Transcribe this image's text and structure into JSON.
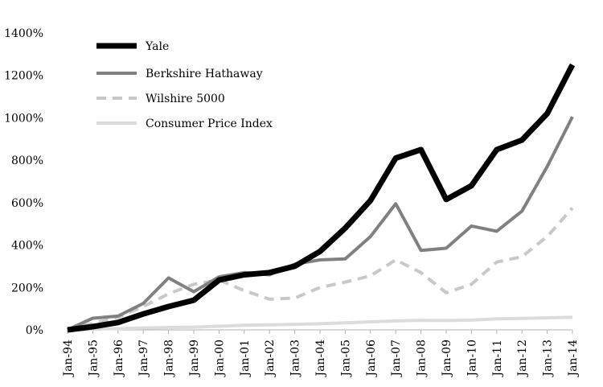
{
  "chart_data": {
    "type": "line",
    "title": "",
    "xlabel": "",
    "ylabel": "",
    "categories": [
      "Jan-94",
      "Jan-95",
      "Jan-96",
      "Jan-97",
      "Jan-98",
      "Jan-99",
      "Jan-00",
      "Jan-01",
      "Jan-02",
      "Jan-03",
      "Jan-04",
      "Jan-05",
      "Jan-06",
      "Jan-07",
      "Jan-08",
      "Jan-09",
      "Jan-10",
      "Jan-11",
      "Jan-12",
      "Jan-13",
      "Jan-14"
    ],
    "ylim": [
      0,
      1400
    ],
    "yticks": [
      0,
      200,
      400,
      600,
      800,
      1000,
      1200,
      1400
    ],
    "ytick_labels": [
      "0%",
      "200%",
      "400%",
      "600%",
      "800%",
      "1000%",
      "1200%",
      "1400%"
    ],
    "grid": false,
    "legend_position": "top-left",
    "series": [
      {
        "name": "Yale",
        "color": "#000000",
        "style": "solid",
        "width": 7,
        "values": [
          0,
          15,
          35,
          75,
          110,
          140,
          235,
          260,
          270,
          300,
          370,
          480,
          610,
          810,
          850,
          615,
          680,
          850,
          895,
          1020,
          1250
        ]
      },
      {
        "name": "Berkshire Hathaway",
        "color": "#808080",
        "style": "solid",
        "width": 4,
        "values": [
          0,
          55,
          65,
          125,
          245,
          180,
          250,
          270,
          260,
          310,
          330,
          335,
          440,
          595,
          375,
          385,
          490,
          465,
          560,
          770,
          1005
        ]
      },
      {
        "name": "Wilshire 5000",
        "color": "#c8c8c8",
        "style": "dashed",
        "width": 4,
        "values": [
          0,
          30,
          60,
          110,
          170,
          215,
          235,
          185,
          145,
          150,
          200,
          225,
          255,
          330,
          270,
          175,
          215,
          320,
          345,
          440,
          575
        ]
      },
      {
        "name": "Consumer Price Index",
        "color": "#dcdcdc",
        "style": "solid",
        "width": 4,
        "values": [
          0,
          3,
          6,
          9,
          11,
          13,
          17,
          22,
          24,
          26,
          29,
          33,
          38,
          42,
          45,
          44,
          46,
          52,
          54,
          57,
          60
        ]
      }
    ]
  }
}
